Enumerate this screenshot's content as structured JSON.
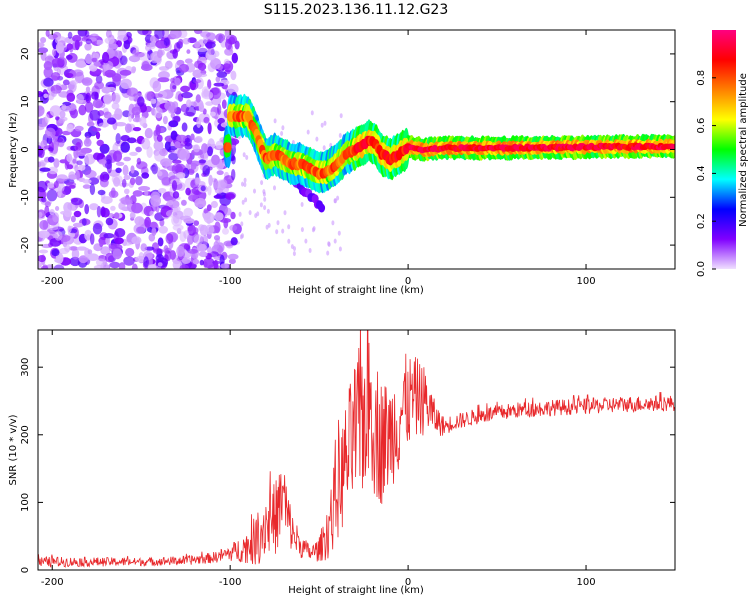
{
  "title": "S115.2023.136.11.12.G23",
  "chart_data": [
    {
      "type": "heatmap",
      "xlabel": "Height of straight line (km)",
      "ylabel": "Frequency (Hz)",
      "xlim": [
        -208,
        150
      ],
      "ylim": [
        -25,
        25
      ],
      "xticks": [
        -200,
        -100,
        0,
        100
      ],
      "yticks": [
        -20,
        -10,
        0,
        10,
        20
      ],
      "ridge": [
        [
          -100,
          7
        ],
        [
          -95,
          7
        ],
        [
          -90,
          7
        ],
        [
          -85,
          3
        ],
        [
          -80,
          -2
        ],
        [
          -75,
          -1
        ],
        [
          -70,
          -2
        ],
        [
          -65,
          -3
        ],
        [
          -60,
          -3
        ],
        [
          -55,
          -4
        ],
        [
          -50,
          -5
        ],
        [
          -45,
          -4.5
        ],
        [
          -40,
          -3
        ],
        [
          -35,
          -1
        ],
        [
          -30,
          0
        ],
        [
          -25,
          1
        ],
        [
          -22,
          2
        ],
        [
          -18,
          1
        ],
        [
          -15,
          -1
        ],
        [
          -10,
          -2
        ],
        [
          -5,
          -1
        ],
        [
          0,
          0.5
        ],
        [
          10,
          0
        ],
        [
          20,
          0.3
        ],
        [
          50,
          0.3
        ],
        [
          100,
          0.5
        ],
        [
          150,
          0.7
        ]
      ],
      "colorbar": {
        "label": "Normalized spectral amplitude",
        "range": [
          0,
          1
        ],
        "ticks": [
          "0.0",
          "0.2",
          "0.4",
          "0.6",
          "0.8"
        ],
        "colors": [
          "#f0e0ff",
          "#8000ff",
          "#0000ff",
          "#00ffff",
          "#00ff00",
          "#ffff00",
          "#ff8000",
          "#ff0000",
          "#ff0080"
        ]
      }
    },
    {
      "type": "line",
      "xlabel": "Height of straight line (km)",
      "ylabel": "SNR (10 * v/v)",
      "xlim": [
        -208,
        150
      ],
      "ylim": [
        0,
        355
      ],
      "xticks": [
        -200,
        -100,
        0,
        100
      ],
      "yticks": [
        0,
        100,
        200,
        300
      ],
      "color": "#e8282b",
      "envelope": [
        [
          -208,
          12,
          8
        ],
        [
          -150,
          12,
          6
        ],
        [
          -125,
          14,
          7
        ],
        [
          -110,
          18,
          8
        ],
        [
          -100,
          25,
          12
        ],
        [
          -90,
          35,
          25
        ],
        [
          -85,
          45,
          40
        ],
        [
          -80,
          70,
          50
        ],
        [
          -75,
          75,
          55
        ],
        [
          -72,
          95,
          60
        ],
        [
          -70,
          110,
          65
        ],
        [
          -68,
          80,
          45
        ],
        [
          -65,
          55,
          30
        ],
        [
          -60,
          35,
          18
        ],
        [
          -55,
          25,
          12
        ],
        [
          -50,
          30,
          18
        ],
        [
          -45,
          60,
          45
        ],
        [
          -40,
          110,
          70
        ],
        [
          -35,
          160,
          90
        ],
        [
          -30,
          200,
          110
        ],
        [
          -25,
          230,
          120
        ],
        [
          -22,
          260,
          130
        ],
        [
          -18,
          210,
          110
        ],
        [
          -15,
          190,
          95
        ],
        [
          -10,
          200,
          80
        ],
        [
          -5,
          230,
          90
        ],
        [
          0,
          250,
          70
        ],
        [
          5,
          255,
          60
        ],
        [
          10,
          250,
          50
        ],
        [
          15,
          225,
          25
        ],
        [
          20,
          212,
          15
        ],
        [
          25,
          218,
          12
        ],
        [
          40,
          228,
          12
        ],
        [
          60,
          236,
          12
        ],
        [
          80,
          240,
          12
        ],
        [
          100,
          242,
          12
        ],
        [
          120,
          245,
          12
        ],
        [
          150,
          247,
          12
        ]
      ]
    }
  ]
}
